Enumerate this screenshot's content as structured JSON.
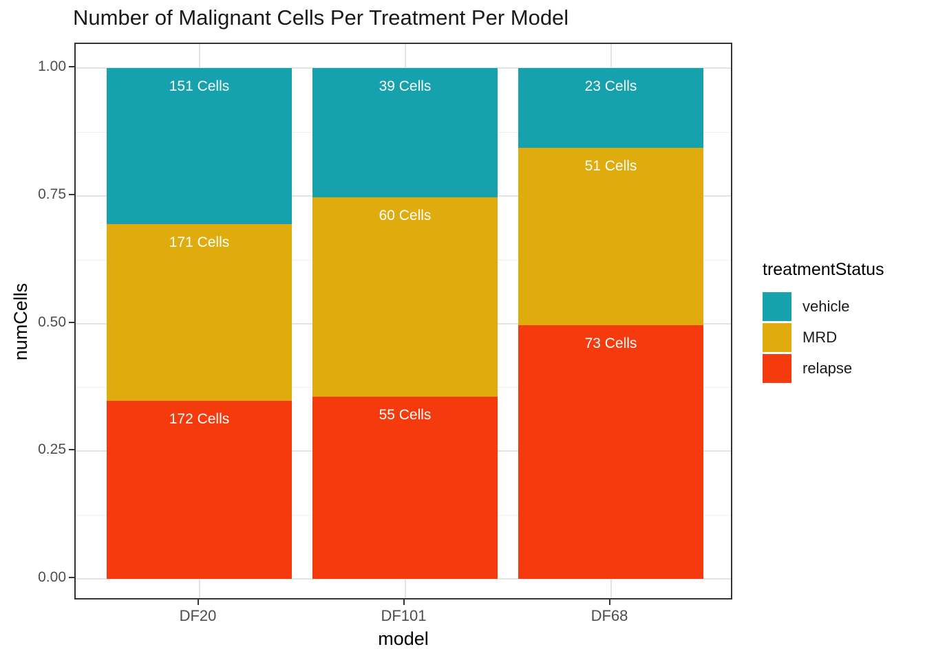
{
  "chart_data": {
    "type": "bar",
    "variant": "stacked-normalized",
    "title": "Number of Malignant Cells Per Treatment Per Model",
    "xlabel": "model",
    "ylabel": "numCells",
    "categories": [
      "DF20",
      "DF101",
      "DF68"
    ],
    "series": [
      {
        "name": "vehicle",
        "color": "#16A2AC",
        "values": [
          151,
          39,
          23
        ],
        "labels": [
          "151 Cells",
          "39 Cells",
          "23 Cells"
        ]
      },
      {
        "name": "MRD",
        "color": "#DFAB0D",
        "values": [
          171,
          60,
          51
        ],
        "labels": [
          "171 Cells",
          "60 Cells",
          "51 Cells"
        ]
      },
      {
        "name": "relapse",
        "color": "#F53B0E",
        "values": [
          172,
          55,
          73
        ],
        "labels": [
          "172 Cells",
          "55 Cells",
          "73 Cells"
        ]
      }
    ],
    "stack_order_top_to_bottom": [
      "vehicle",
      "MRD",
      "relapse"
    ],
    "ylim": [
      0,
      1
    ],
    "y_ticks": [
      {
        "value": 0.0,
        "label": "0.00"
      },
      {
        "value": 0.25,
        "label": "0.25"
      },
      {
        "value": 0.5,
        "label": "0.50"
      },
      {
        "value": 0.75,
        "label": "0.75"
      },
      {
        "value": 1.0,
        "label": "1.00"
      }
    ],
    "y_minor_ticks": [
      0.125,
      0.375,
      0.625,
      0.875
    ],
    "grid": true,
    "bar_label_color": "#FFFFFF",
    "legend": {
      "title": "treatmentStatus",
      "position": "right",
      "entries": [
        "vehicle",
        "MRD",
        "relapse"
      ]
    }
  },
  "colors": {
    "panel_border": "#333333",
    "grid_major": "#E3E3E3",
    "grid_minor": "#F1F1F1",
    "tick": "#333333",
    "tick_label": "#4D4D4D"
  }
}
